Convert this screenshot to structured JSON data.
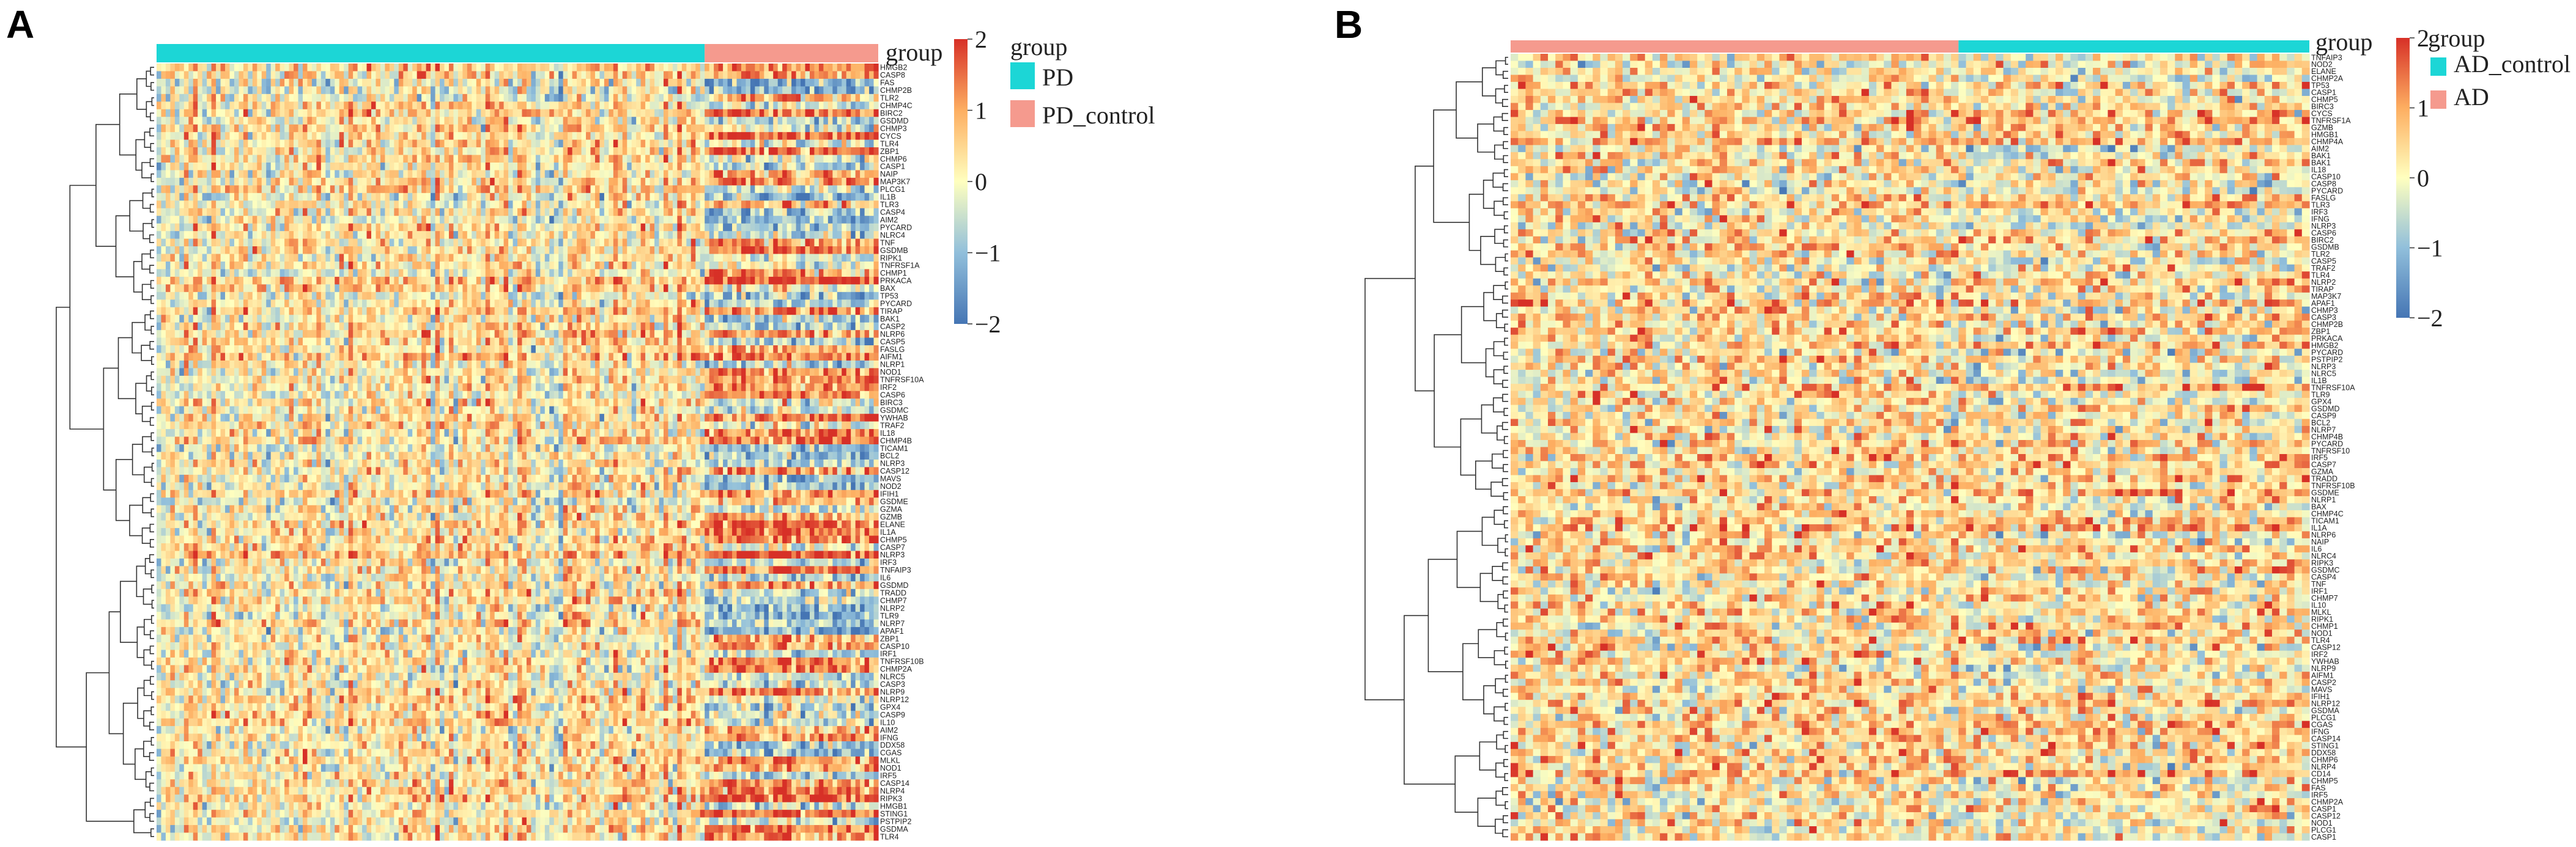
{
  "colors": {
    "low": "#4575b4",
    "mid_low": "#91bfdb",
    "mid": "#ffffbf",
    "mid_high": "#fdae61",
    "high": "#d73027",
    "cyan": "#1cd6d6",
    "salmon": "#f59a8e",
    "tree": "#333333"
  },
  "chart_data": [
    {
      "type": "heatmap",
      "panel": "A",
      "annotation_title": "group",
      "groups": [
        {
          "name": "PD",
          "color": "#1cd6d6",
          "samples": 120
        },
        {
          "name": "PD_control",
          "color": "#f59a8e",
          "samples": 38
        }
      ],
      "color_scale": {
        "min": -2,
        "max": 2,
        "ticks": [
          "2",
          "1",
          "0",
          "−1",
          "−2"
        ]
      },
      "genes": [
        "HMGB2",
        "CASP8",
        "FAS",
        "CHMP2B",
        "TLR2",
        "CHMP4C",
        "BIRC2",
        "GSDMD",
        "CHMP3",
        "CYCS",
        "TLR4",
        "ZBP1",
        "CHMP6",
        "CASP1",
        "NAIP",
        "MAP3K7",
        "PLCG1",
        "IL1B",
        "TLR3",
        "CASP4",
        "AIM2",
        "PYCARD",
        "NLRC4",
        "TNF",
        "GSDMB",
        "RIPK1",
        "TNFRSF1A",
        "CHMP1",
        "PRKACA",
        "BAX",
        "TP53",
        "PYCARD",
        "TIRAP",
        "BAK1",
        "CASP2",
        "NLRP6",
        "CASP5",
        "FASLG",
        "AIFM1",
        "NLRP1",
        "NOD1",
        "TNFRSF10A",
        "IRF2",
        "CASP6",
        "BIRC3",
        "GSDMC",
        "YWHAB",
        "TRAF2",
        "IL18",
        "CHMP4B",
        "TICAM1",
        "BCL2",
        "NLRP3",
        "CASP12",
        "MAVS",
        "NOD2",
        "IFIH1",
        "GSDME",
        "GZMA",
        "GZMB",
        "ELANE",
        "IL1A",
        "CHMP5",
        "CASP7",
        "NLRP3",
        "IRF3",
        "TNFAIP3",
        "IL6",
        "GSDMD",
        "TRADD",
        "CHMP7",
        "NLRP2",
        "TLR9",
        "NLRP7",
        "APAF1",
        "ZBP1",
        "CASP10",
        "IRF1",
        "TNFRSF10B",
        "CHMP2A",
        "NLRC5",
        "CASP3",
        "NLRP9",
        "NLRP12",
        "GPX4",
        "CASP9",
        "IL10",
        "AIM2",
        "IFNG",
        "DDX58",
        "CGAS",
        "MLKL",
        "NOD1",
        "IRF5",
        "CASP14",
        "NLRP4",
        "RIPK3",
        "HMGB1",
        "STING1",
        "PSTPIP2",
        "GSDMA",
        "TLR4"
      ],
      "series_note": "z-scored expression, values in [-2, 2]"
    },
    {
      "type": "heatmap",
      "panel": "B",
      "annotation_title": "group",
      "groups": [
        {
          "name": "AD",
          "color": "#f59a8e",
          "samples": 60
        },
        {
          "name": "AD_control",
          "color": "#1cd6d6",
          "samples": 47
        }
      ],
      "legend_order": [
        "AD_control",
        "AD"
      ],
      "color_scale": {
        "min": -2,
        "max": 2,
        "ticks": [
          "2",
          "1",
          "0",
          "−1",
          "−2"
        ]
      },
      "genes": [
        "TNFAIP3",
        "NOD2",
        "ELANE",
        "CHMP2A",
        "TP53",
        "CASP1",
        "CHMP5",
        "BIRC3",
        "CYCS",
        "TNFRSF1A",
        "GZMB",
        "HMGB1",
        "CHMP4A",
        "AIM2",
        "BAK1",
        "BAK1",
        "IL18",
        "CASP10",
        "CASP8",
        "PYCARD",
        "FASLG",
        "TLR3",
        "IRF3",
        "IFNG",
        "NLRP3",
        "CASP6",
        "BIRC2",
        "GSDMB",
        "TLR2",
        "CASP5",
        "TRAF2",
        "TLR4",
        "NLRP2",
        "TIRAP",
        "MAP3K7",
        "APAF1",
        "CHMP3",
        "CASP3",
        "CHMP2B",
        "ZBP1",
        "PRKACA",
        "HMGB2",
        "PYCARD",
        "PSTPIP2",
        "NLRP3",
        "NLRC5",
        "IL1B",
        "TNFRSF10A",
        "TLR9",
        "GPX4",
        "GSDMD",
        "CASP9",
        "BCL2",
        "NLRP7",
        "CHMP4B",
        "PYCARD",
        "TNFRSF10",
        "IRF5",
        "CASP7",
        "GZMA",
        "TRADD",
        "TNFRSF10B",
        "GSDME",
        "NLRP1",
        "BAX",
        "CHMP4C",
        "TICAM1",
        "IL1A",
        "NLRP6",
        "NAIP",
        "IL6",
        "NLRC4",
        "RIPK3",
        "GSDMC",
        "CASP4",
        "TNF",
        "IRF1",
        "CHMP7",
        "IL10",
        "MLKL",
        "RIPK1",
        "CHMP1",
        "NOD1",
        "TLR4",
        "CASP12",
        "IRF2",
        "YWHAB",
        "NLRP9",
        "AIFM1",
        "CASP2",
        "MAVS",
        "IFIH1",
        "NLRP12",
        "GSDMA",
        "PLCG1",
        "CGAS",
        "IFNG",
        "CASP14",
        "STING1",
        "DDX58",
        "CHMP6",
        "NLRP4",
        "CD14",
        "CHMP5",
        "FAS",
        "IRF5",
        "CHMP2A",
        "CASP1",
        "CASP12",
        "NOD1",
        "PLCG1",
        "CASP1"
      ],
      "series_note": "z-scored expression, values in [-2, 2]"
    }
  ]
}
